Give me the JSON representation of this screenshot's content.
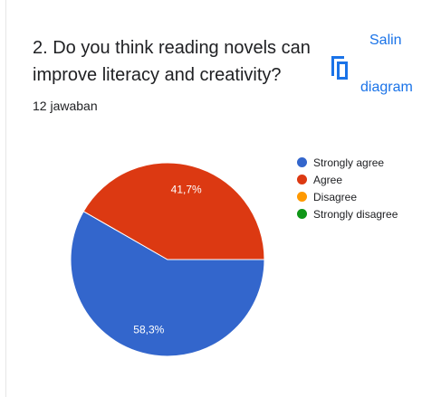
{
  "question": {
    "text": "2. Do you think reading novels can improve literacy and creativity?",
    "responses": "12 jawaban"
  },
  "copy_button": {
    "line1": "Salin",
    "line2": "diagram",
    "icon": "copy-icon"
  },
  "colors": {
    "blue": "#3366cc",
    "red": "#dc3912",
    "orange": "#ff9900",
    "green": "#109618"
  },
  "chart_data": {
    "type": "pie",
    "slices": [
      {
        "label": "Strongly agree",
        "value": 58.3,
        "display": "58,3%",
        "color": "#3366cc"
      },
      {
        "label": "Agree",
        "value": 41.7,
        "display": "41,7%",
        "color": "#dc3912"
      },
      {
        "label": "Disagree",
        "value": 0,
        "display": "",
        "color": "#ff9900"
      },
      {
        "label": "Strongly disagree",
        "value": 0,
        "display": "",
        "color": "#109618"
      }
    ],
    "legend_position": "right"
  }
}
